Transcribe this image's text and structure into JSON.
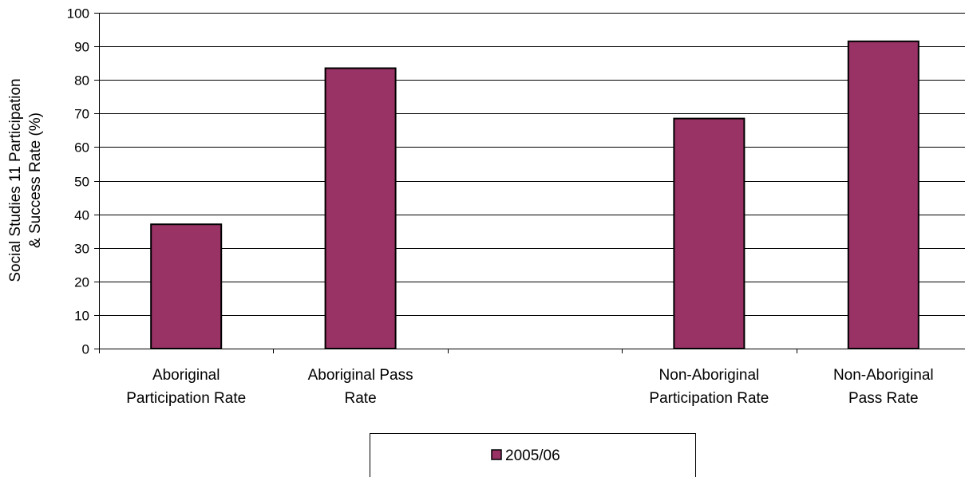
{
  "chart_data": {
    "type": "bar",
    "categories": [
      [
        "Aboriginal",
        "Participation Rate"
      ],
      [
        "Aboriginal Pass",
        "Rate"
      ],
      [
        "",
        ""
      ],
      [
        "Non-Aboriginal",
        "Participation Rate"
      ],
      [
        "Non-Aboriginal",
        "Pass Rate"
      ]
    ],
    "series": [
      {
        "name": "2005/06",
        "values": [
          37,
          83.5,
          null,
          68.5,
          91.5
        ],
        "color": "#993366"
      }
    ],
    "ylabel": [
      "Social Studies 11 Participation",
      "& Success Rate (%)"
    ],
    "ylim": [
      0,
      100
    ],
    "yticks": [
      0,
      10,
      20,
      30,
      40,
      50,
      60,
      70,
      80,
      90,
      100
    ],
    "grid": true,
    "legend_position": "bottom-center"
  }
}
